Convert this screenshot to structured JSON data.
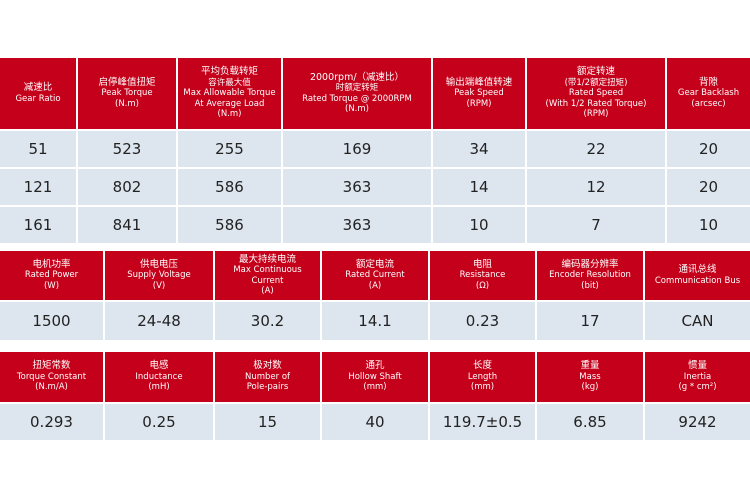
{
  "tables": [
    {
      "headers": [
        [
          "减速比",
          "Gear Ratio"
        ],
        [
          "启停峰值扭矩",
          "Peak Torque",
          "(N.m)"
        ],
        [
          "平均负载转矩",
          "容许最大值",
          "Max Allowable Torque",
          "At Average Load",
          "(N.m)"
        ],
        [
          "2000rpm/（减速比）",
          "时额定转矩",
          "Rated Torque @ 2000RPM",
          "(N.m)"
        ],
        [
          "输出端峰值转速",
          "Peak Speed",
          "(RPM)"
        ],
        [
          "额定转速",
          "(带1/2额定扭矩)",
          "Rated Speed",
          "(With 1/2 Rated Torque)",
          "(RPM)"
        ],
        [
          "背隙",
          "Gear Backlash",
          "(arcsec)"
        ]
      ],
      "rows": [
        [
          "51",
          "523",
          "255",
          "169",
          "34",
          "22",
          "20"
        ],
        [
          "121",
          "802",
          "586",
          "363",
          "14",
          "12",
          "20"
        ],
        [
          "161",
          "841",
          "586",
          "363",
          "10",
          "7",
          "10"
        ]
      ]
    },
    {
      "headers": [
        [
          "电机功率",
          "Rated Power",
          "(W)"
        ],
        [
          "供电电压",
          "Supply Voltage",
          "(V)"
        ],
        [
          "最大持续电流",
          "Max Continuous",
          "Current",
          "(A)"
        ],
        [
          "额定电流",
          "Rated Current",
          "(A)"
        ],
        [
          "电阻",
          "Resistance",
          "(Ω)"
        ],
        [
          "编码器分辨率",
          "Encoder Resolution",
          "(bit)"
        ],
        [
          "通讯总线",
          "Communication Bus"
        ]
      ],
      "rows": [
        [
          "1500",
          "24-48",
          "30.2",
          "14.1",
          "0.23",
          "17",
          "CAN"
        ]
      ]
    },
    {
      "headers": [
        [
          "扭矩常数",
          "Torque Constant",
          "(N.m/A)"
        ],
        [
          "电感",
          "Inductance",
          "(mH)"
        ],
        [
          "极对数",
          "Number of",
          "Pole-pairs"
        ],
        [
          "通孔",
          "Hollow Shaft",
          "(mm)"
        ],
        [
          "长度",
          "Length",
          "(mm)"
        ],
        [
          "重量",
          "Mass",
          "(kg)"
        ],
        [
          "惯量",
          "Inertia",
          "(g * cm²)"
        ]
      ],
      "rows": [
        [
          "0.293",
          "0.25",
          "15",
          "40",
          "119.7±0.5",
          "6.85",
          "9242"
        ]
      ]
    }
  ]
}
